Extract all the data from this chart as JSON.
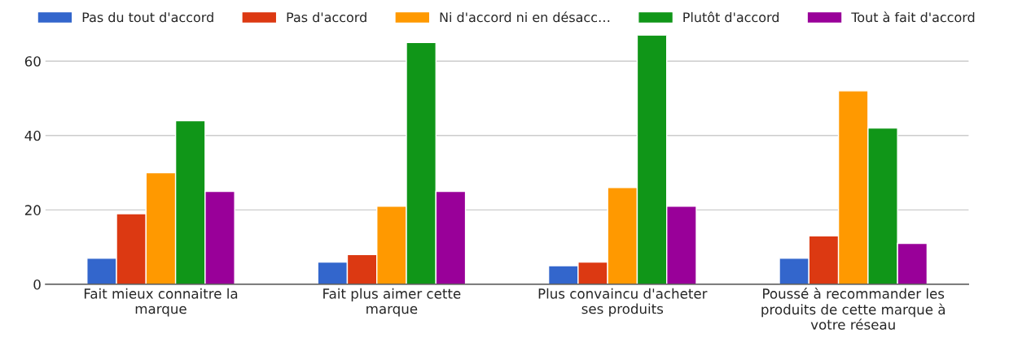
{
  "chart_data": {
    "type": "bar",
    "categories": [
      "Fait mieux connaitre la marque",
      "Fait plus aimer cette marque",
      "Plus convaincu d'acheter ses produits",
      "Poussé à recommander les produits de cette marque à votre réseau"
    ],
    "series": [
      {
        "name": "Pas du tout d'accord",
        "color": "#3366cc",
        "values": [
          7,
          6,
          5,
          7
        ]
      },
      {
        "name": "Pas d'accord",
        "color": "#dc3912",
        "values": [
          19,
          8,
          6,
          13
        ]
      },
      {
        "name": "Ni d'accord ni en désacc…",
        "color": "#ff9900",
        "values": [
          30,
          21,
          26,
          52
        ]
      },
      {
        "name": "Plutôt d'accord",
        "color": "#109618",
        "values": [
          44,
          65,
          67,
          42
        ]
      },
      {
        "name": "Tout à fait d'accord",
        "color": "#990099",
        "values": [
          25,
          25,
          21,
          11
        ]
      }
    ],
    "ylim": [
      0,
      67
    ],
    "yticks": [
      0,
      20,
      40,
      60
    ],
    "grid": "y",
    "legend": "top"
  }
}
